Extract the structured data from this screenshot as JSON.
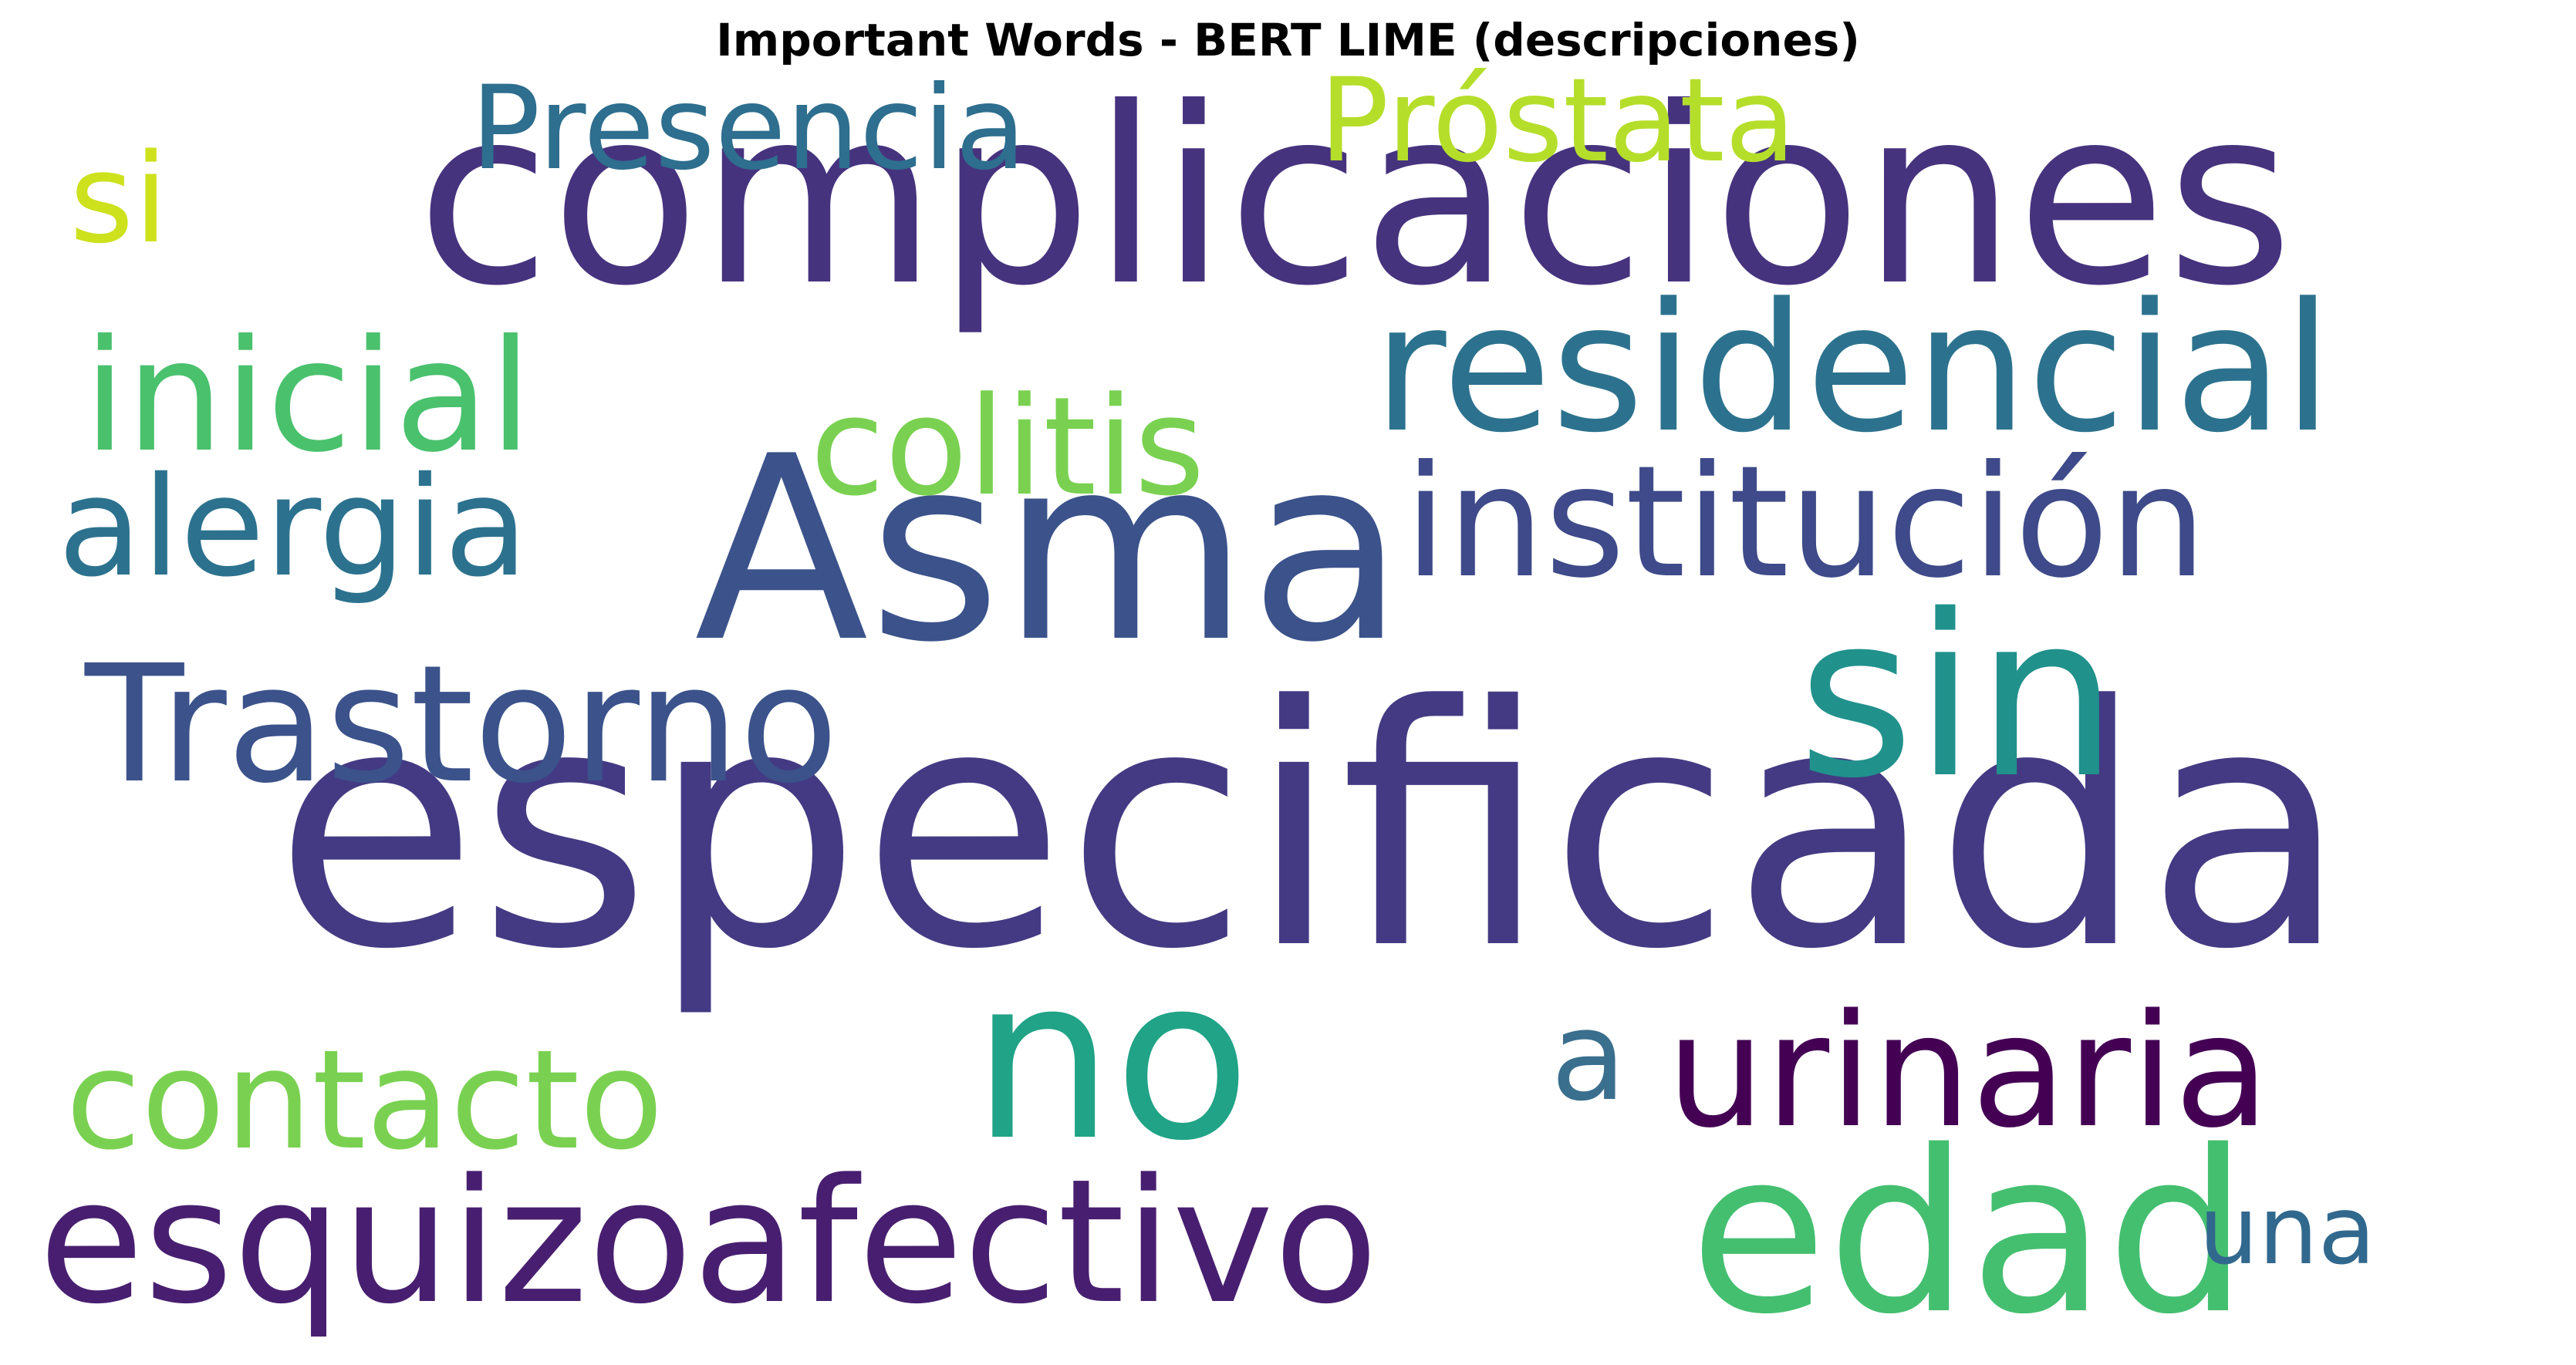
{
  "title": "Important Words - BERT LIME (descripciones)",
  "words": {
    "complicaciones": {
      "text": "complicaciones",
      "color": "#46337e"
    },
    "especificada": {
      "text": "especificada",
      "color": "#443a83"
    },
    "asma": {
      "text": "Asma",
      "color": "#3b528b"
    },
    "residencial": {
      "text": "residencial",
      "color": "#2c728e"
    },
    "institucion": {
      "text": "institución",
      "color": "#3e4a89"
    },
    "sin": {
      "text": "sin",
      "color": "#21918c"
    },
    "no": {
      "text": "no",
      "color": "#20a386"
    },
    "edad": {
      "text": "edad",
      "color": "#44bf70"
    },
    "esquizoafectivo": {
      "text": "esquizoafectivo",
      "color": "#481f70"
    },
    "urinaria": {
      "text": "urinaria",
      "color": "#440154"
    },
    "trastorno": {
      "text": "Trastorno",
      "color": "#3b528b"
    },
    "inicial": {
      "text": "inicial",
      "color": "#4ac16d"
    },
    "colitis": {
      "text": "colitis",
      "color": "#7ad151"
    },
    "alergia": {
      "text": "alergia",
      "color": "#2c728e"
    },
    "contacto": {
      "text": "contacto",
      "color": "#7ad151"
    },
    "presencia": {
      "text": "Presencia",
      "color": "#2e6e8e"
    },
    "prostata": {
      "text": "Próstata",
      "color": "#b5de2b"
    },
    "si": {
      "text": "si",
      "color": "#cde11d"
    },
    "a": {
      "text": "a",
      "color": "#3b6f8e"
    },
    "una": {
      "text": "una",
      "color": "#31688e"
    }
  }
}
